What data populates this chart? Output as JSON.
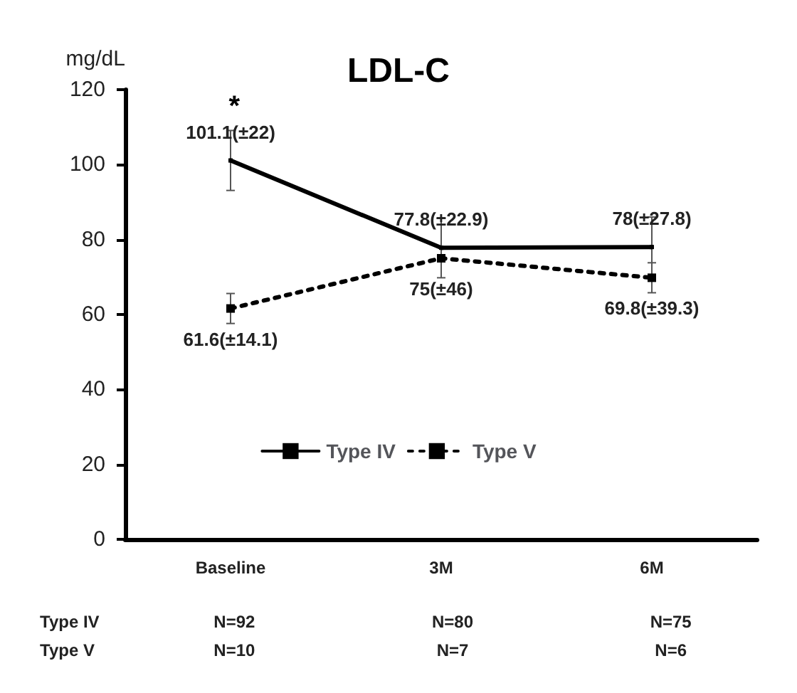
{
  "chart_data": {
    "type": "line",
    "title": "LDL-C",
    "ylabel": "mg/dL",
    "categories": [
      "Baseline",
      "3M",
      "6M"
    ],
    "series": [
      {
        "name": "Type IV",
        "color": "#000000",
        "line_style": "solid",
        "values": [
          101.1,
          77.8,
          78
        ],
        "errors": [
          8,
          8,
          8
        ],
        "value_labels": [
          "101.1(±22)",
          "77.8(±22.9)",
          "78(±27.8)"
        ]
      },
      {
        "name": "Type V",
        "color": "#000000",
        "line_style": "dotted",
        "values": [
          61.6,
          75,
          69.8
        ],
        "errors": [
          4,
          null,
          4
        ],
        "value_labels": [
          "61.6(±14.1)",
          "75(±46)",
          "69.8(±39.3)"
        ]
      }
    ],
    "ylim": [
      0,
      120
    ],
    "yticks": [
      0,
      20,
      40,
      60,
      80,
      100,
      120
    ],
    "grid": false,
    "legend": "bottom",
    "marker": "square",
    "annotations": [
      "*",
      "Type IV",
      "N=92",
      "N=80",
      "N=75",
      "Type V",
      "N=10",
      "N=7",
      "N=6"
    ]
  }
}
